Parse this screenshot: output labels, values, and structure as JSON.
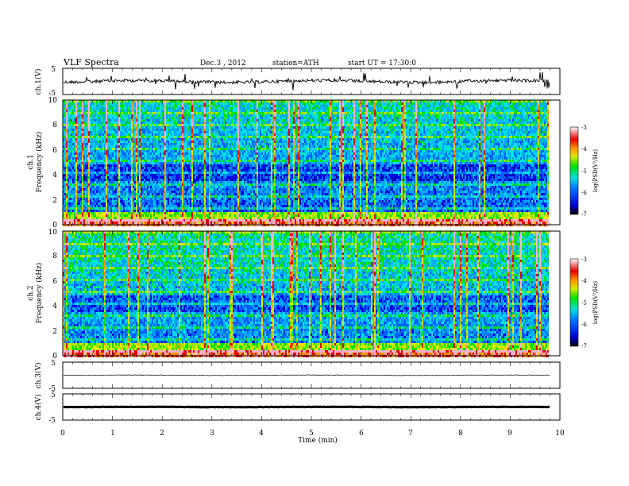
{
  "header": {
    "title": "VLF  Spectra",
    "date": "Dec.3  , 2012",
    "station": "station=ATH",
    "start": "start  UT  =    17:30:0"
  },
  "chart_data": {
    "type": "multi-panel",
    "x": {
      "label": "Time  (min)",
      "range": [
        0,
        10
      ],
      "ticks": [
        "0",
        "1",
        "2",
        "3",
        "4",
        "5",
        "6",
        "7",
        "8",
        "9",
        "10"
      ],
      "data_end": 9.8
    },
    "panels": [
      {
        "id": "ch1",
        "type": "line",
        "ylabel": "ch.1(V)",
        "ylim": [
          -5,
          5
        ],
        "yticks": [
          "5",
          "-5"
        ],
        "baseline": 0
      },
      {
        "id": "ch1spec",
        "type": "heatmap",
        "ylabel": "ch.1\nFrequency  (kHz)",
        "ylim": [
          0,
          10
        ],
        "yticks": [
          "0",
          "2",
          "4",
          "6",
          "8",
          "10"
        ],
        "colorbar": {
          "label": "log(PSD(V²/Hz)",
          "range": [
            -7,
            -3
          ],
          "ticks": [
            "-3",
            "-4",
            "-5",
            "-6",
            "-7"
          ]
        }
      },
      {
        "id": "ch2spec",
        "type": "heatmap",
        "ylabel": "ch.2\nFrequency  (kHz)",
        "ylim": [
          0,
          10
        ],
        "yticks": [
          "0",
          "2",
          "4",
          "6",
          "8",
          "10"
        ],
        "colorbar": {
          "label": "log(PSD(V²/Hz)",
          "range": [
            -7,
            -3
          ],
          "ticks": [
            "-3",
            "-4",
            "-5",
            "-6",
            "-7"
          ]
        }
      },
      {
        "id": "ch3",
        "type": "line",
        "ylabel": "ch.3(V)",
        "ylim": [
          -5,
          5
        ],
        "yticks": [
          "5",
          "-5"
        ],
        "baseline": 0
      },
      {
        "id": "ch4",
        "type": "line",
        "ylabel": "ch.4(V)",
        "ylim": [
          -5,
          5
        ],
        "yticks": [
          "5",
          "-5"
        ],
        "baseline": 0
      }
    ]
  }
}
